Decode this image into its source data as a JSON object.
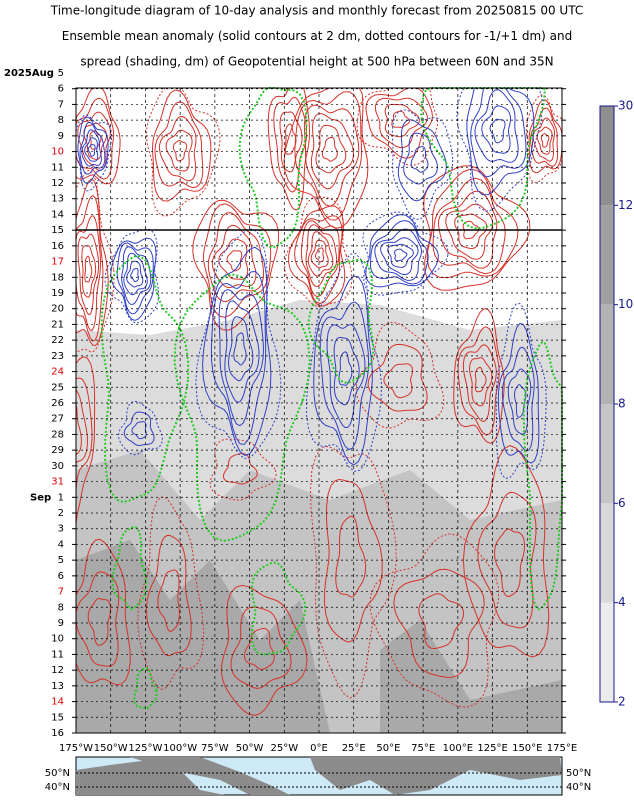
{
  "title_lines": [
    "Time-longitude diagram of 10-day analysis and monthly forecast from 20250815 00 UTC",
    "Ensemble mean anomaly (solid contours at 2 dm, dotted contours for -1/+1 dm) and",
    "spread (shading, dm) of Geopotential height at 500 hPa between 60N and 35N"
  ],
  "y_axis": {
    "month_labels": [
      "2025Aug",
      "Sep"
    ],
    "day_labels": [
      "5",
      "6",
      "7",
      "8",
      "9",
      "10",
      "11",
      "12",
      "13",
      "14",
      "15",
      "16",
      "17",
      "18",
      "19",
      "20",
      "21",
      "22",
      "23",
      "24",
      "25",
      "26",
      "27",
      "28",
      "29",
      "30",
      "31",
      "1",
      "2",
      "3",
      "4",
      "5",
      "6",
      "7",
      "8",
      "9",
      "10",
      "11",
      "12",
      "13",
      "14",
      "15",
      "16"
    ]
  },
  "x_axis": {
    "labels": [
      "175°W",
      "150°W",
      "125°W",
      "100°W",
      "75°W",
      "50°W",
      "25°W",
      "0°E",
      "25°E",
      "50°E",
      "75°E",
      "100°E",
      "125°E",
      "150°E",
      "175°E"
    ]
  },
  "colorbar": {
    "labels": [
      "30",
      "12",
      "10",
      "8",
      "6",
      "4",
      "2"
    ]
  },
  "map": {
    "left_labels": [
      "50°N",
      "40°N"
    ],
    "right_labels": [
      "50°N",
      "40°N"
    ]
  }
}
